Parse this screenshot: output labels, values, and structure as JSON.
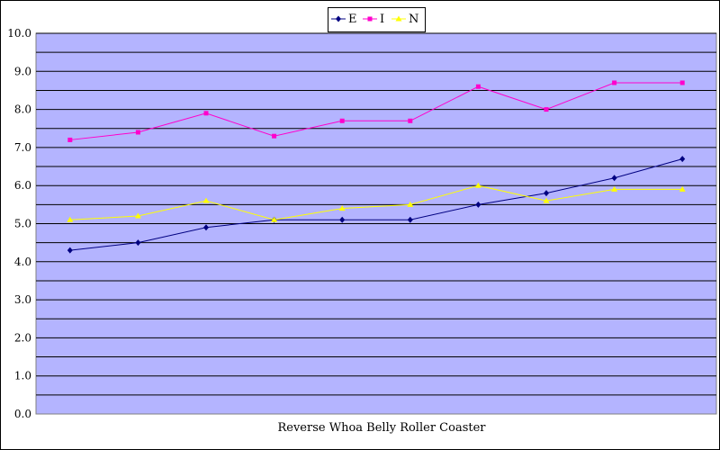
{
  "chart_data": {
    "type": "line",
    "xlabel": "Reverse Whoa Belly Roller Coaster",
    "ylabel": "",
    "ylim": [
      0,
      10
    ],
    "y_ticks": [
      "0.0",
      "1.0",
      "2.0",
      "3.0",
      "4.0",
      "5.0",
      "6.0",
      "7.0",
      "8.0",
      "9.0",
      "10.0"
    ],
    "grid": true,
    "legend_position": "top-center",
    "x": [
      1,
      2,
      3,
      4,
      5,
      6,
      7,
      8,
      9,
      10
    ],
    "series": [
      {
        "name": "E",
        "color": "#000080",
        "marker": "diamond",
        "values": [
          4.3,
          4.5,
          4.9,
          5.1,
          5.1,
          5.1,
          5.5,
          5.8,
          6.2,
          6.7
        ]
      },
      {
        "name": "I",
        "color": "#FF00CC",
        "marker": "square",
        "values": [
          7.2,
          7.4,
          7.9,
          7.3,
          7.7,
          7.7,
          8.6,
          8.0,
          8.7,
          8.7
        ]
      },
      {
        "name": "N",
        "color": "#FFFF00",
        "marker": "triangle",
        "values": [
          5.1,
          5.2,
          5.6,
          5.1,
          5.4,
          5.5,
          6.0,
          5.6,
          5.9,
          5.9
        ]
      }
    ],
    "colors": {
      "plot_background": "#B4B4FF",
      "gridline": "#000000"
    }
  }
}
